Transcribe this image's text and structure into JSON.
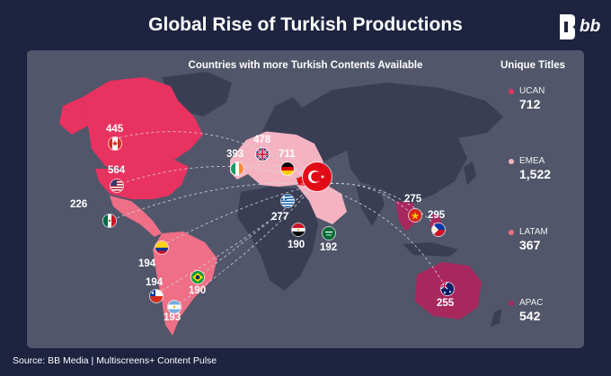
{
  "title": "Global Rise of Turkish Productions",
  "logo_text": "bb",
  "subtitle": "Countries with more Turkish Contents Available",
  "legend": {
    "title": "Unique Titles",
    "items": [
      {
        "name": "UCAN",
        "value": "712",
        "color": "#e8325f"
      },
      {
        "name": "EMEA",
        "value": "1,522",
        "color": "#f5b3c2"
      },
      {
        "name": "LATAM",
        "value": "367",
        "color": "#ee6f86"
      },
      {
        "name": "APAC",
        "value": "542",
        "color": "#a8285e"
      }
    ]
  },
  "countries": [
    {
      "key": "canada",
      "value": "445",
      "region": "UCAN"
    },
    {
      "key": "usa",
      "value": "564",
      "region": "UCAN"
    },
    {
      "key": "mexico",
      "value": "226",
      "region": "LATAM"
    },
    {
      "key": "colombia",
      "value": "194",
      "region": "LATAM"
    },
    {
      "key": "chile",
      "value": "194",
      "region": "LATAM"
    },
    {
      "key": "brazil",
      "value": "190",
      "region": "LATAM"
    },
    {
      "key": "argentina",
      "value": "193",
      "region": "LATAM"
    },
    {
      "key": "uk",
      "value": "478",
      "region": "EMEA"
    },
    {
      "key": "ireland",
      "value": "393",
      "region": "EMEA"
    },
    {
      "key": "germany",
      "value": "711",
      "region": "EMEA"
    },
    {
      "key": "greece",
      "value": "277",
      "region": "EMEA"
    },
    {
      "key": "egypt",
      "value": "190",
      "region": "EMEA"
    },
    {
      "key": "saudi_arabia",
      "value": "192",
      "region": "EMEA"
    },
    {
      "key": "vietnam",
      "value": "275",
      "region": "APAC"
    },
    {
      "key": "philippines",
      "value": "295",
      "region": "APAC"
    },
    {
      "key": "australia",
      "value": "255",
      "region": "APAC"
    }
  ],
  "source": "Source: BB Media | Multiscreens+ Content Pulse",
  "colors": {
    "background": "#1e2340",
    "panel": "#52566a",
    "land": "#3a3e54",
    "ucan": "#e8325f",
    "emea": "#f5b3c2",
    "latam": "#ee6f86",
    "apac": "#a8285e",
    "turkey": "#e30a17"
  }
}
